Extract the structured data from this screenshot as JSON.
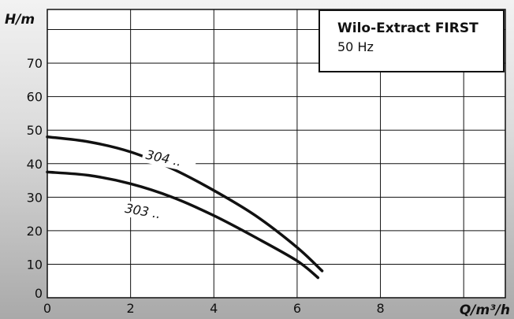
{
  "chart_data": {
    "type": "line",
    "xlabel": "Q/m³/h",
    "ylabel": "H/m",
    "xlim": [
      0,
      11
    ],
    "ylim": [
      0,
      86
    ],
    "grid": true,
    "x_ticks": [
      "0",
      "2",
      "4",
      "6",
      "8"
    ],
    "y_ticks": [
      "0",
      "10",
      "20",
      "30",
      "40",
      "50",
      "60",
      "70"
    ],
    "legend_title": "Wilo-Extract FIRST",
    "legend_subtitle": "50 Hz",
    "series": [
      {
        "name": "304 ..",
        "x": [
          0,
          1,
          2,
          3,
          4,
          5,
          6,
          6.6
        ],
        "y": [
          48,
          46.5,
          43.5,
          38.5,
          32,
          24.5,
          15,
          8
        ]
      },
      {
        "name": "303 ..",
        "x": [
          0,
          1,
          2,
          3,
          4,
          5,
          6,
          6.5
        ],
        "y": [
          37.5,
          36.5,
          34,
          30,
          24.5,
          18,
          11,
          6
        ]
      }
    ]
  }
}
